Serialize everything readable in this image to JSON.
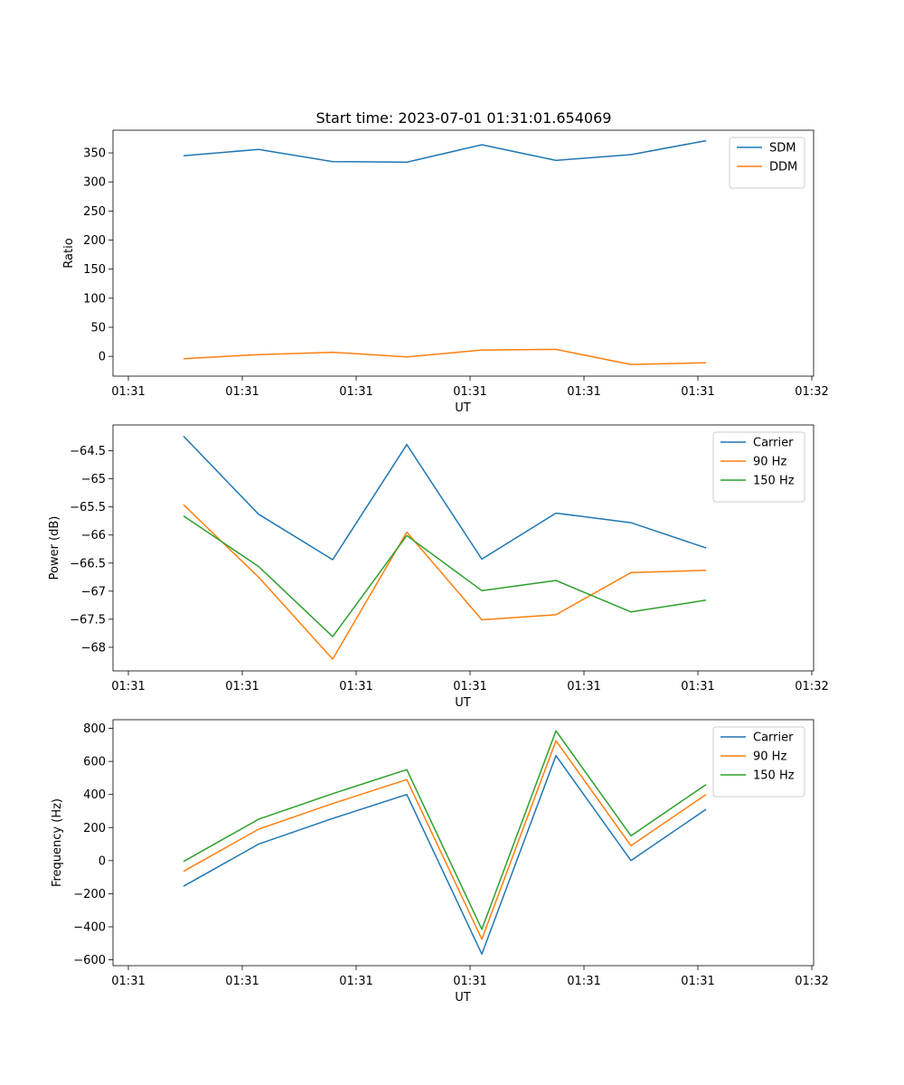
{
  "title": "Start time: 2023-07-01 01:31:01.654069",
  "chart_data": [
    {
      "type": "line",
      "xlabel": "UT",
      "ylabel": "Ratio",
      "x_tick_labels": [
        "01:31",
        "01:31",
        "01:31",
        "01:31",
        "01:31",
        "01:31",
        "01:32"
      ],
      "yticks": [
        0,
        50,
        100,
        150,
        200,
        250,
        300,
        350
      ],
      "ylim": [
        -34,
        389
      ],
      "legend_loc": "upper right",
      "x": [
        0,
        1,
        2,
        3,
        4,
        5,
        6,
        7
      ],
      "series": [
        {
          "name": "SDM",
          "color": "#1f77b4",
          "values": [
            345,
            356,
            335,
            334,
            364,
            337,
            347,
            371
          ]
        },
        {
          "name": "DDM",
          "color": "#ff7f0e",
          "values": [
            -4,
            3,
            7,
            -1,
            11,
            12,
            -14,
            -11
          ]
        }
      ]
    },
    {
      "type": "line",
      "xlabel": "UT",
      "ylabel": "Power (dB)",
      "x_tick_labels": [
        "01:31",
        "01:31",
        "01:31",
        "01:31",
        "01:31",
        "01:31",
        "01:32"
      ],
      "yticks": [
        -68.0,
        -67.5,
        -67.0,
        -66.5,
        -66.0,
        -65.5,
        -65.0,
        -64.5
      ],
      "ylim": [
        -68.42,
        -64.04
      ],
      "legend_loc": "upper right",
      "x": [
        0,
        1,
        2,
        3,
        4,
        5,
        6,
        7
      ],
      "series": [
        {
          "name": "Carrier",
          "color": "#1f77b4",
          "values": [
            -64.24,
            -65.63,
            -66.44,
            -64.39,
            -66.43,
            -65.61,
            -65.78,
            -66.23
          ]
        },
        {
          "name": "90 Hz",
          "color": "#ff7f0e",
          "values": [
            -65.46,
            -66.75,
            -68.21,
            -65.95,
            -67.51,
            -67.42,
            -66.67,
            -66.63
          ]
        },
        {
          "name": "150 Hz",
          "color": "#2ca02c",
          "values": [
            -65.66,
            -66.56,
            -67.81,
            -66.01,
            -66.99,
            -66.81,
            -67.37,
            -67.16
          ]
        }
      ]
    },
    {
      "type": "line",
      "xlabel": "UT",
      "ylabel": "Frequency (Hz)",
      "x_tick_labels": [
        "01:31",
        "01:31",
        "01:31",
        "01:31",
        "01:31",
        "01:31",
        "01:32"
      ],
      "yticks": [
        -600,
        -400,
        -200,
        0,
        200,
        400,
        600,
        800
      ],
      "ylim": [
        -635,
        852
      ],
      "legend_loc": "upper right",
      "x": [
        0,
        1,
        2,
        3,
        4,
        5,
        6,
        7
      ],
      "series": [
        {
          "name": "Carrier",
          "color": "#1f77b4",
          "values": [
            -155,
            100,
            255,
            400,
            -565,
            635,
            0,
            310
          ]
        },
        {
          "name": "90 Hz",
          "color": "#ff7f0e",
          "values": [
            -65,
            190,
            345,
            490,
            -475,
            725,
            90,
            400
          ]
        },
        {
          "name": "150 Hz",
          "color": "#2ca02c",
          "values": [
            -5,
            250,
            405,
            550,
            -415,
            785,
            150,
            460
          ]
        }
      ]
    }
  ]
}
